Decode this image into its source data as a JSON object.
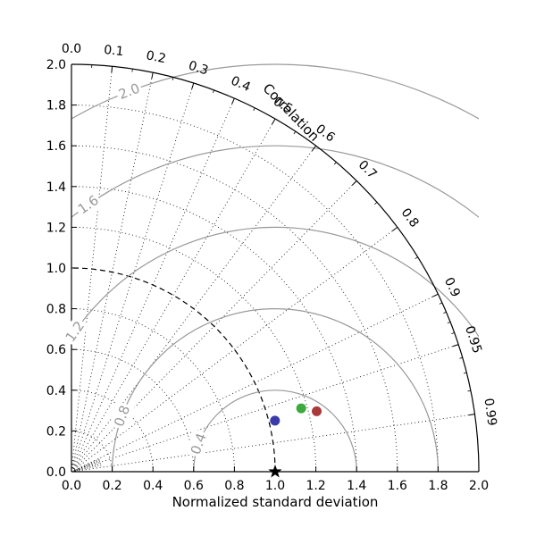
{
  "chart_data": {
    "type": "scatter",
    "subtype": "taylor-diagram",
    "title": "",
    "xlabel": "Normalized standard deviation",
    "ylabel": "",
    "angular_label": "Correlation",
    "xlim": [
      0.0,
      2.0
    ],
    "ylim": [
      0.0,
      2.0
    ],
    "x_ticks": [
      "0.0",
      "0.2",
      "0.4",
      "0.6",
      "0.8",
      "1.0",
      "1.2",
      "1.4",
      "1.6",
      "1.8",
      "2.0"
    ],
    "y_ticks": [
      "0.0",
      "0.2",
      "0.4",
      "0.6",
      "0.8",
      "1.0",
      "1.2",
      "1.4",
      "1.6",
      "1.8",
      "2.0"
    ],
    "correlation_ticks": [
      {
        "value": 0.0,
        "label": "0.0"
      },
      {
        "value": 0.1,
        "label": "0.1"
      },
      {
        "value": 0.2,
        "label": "0.2"
      },
      {
        "value": 0.3,
        "label": "0.3"
      },
      {
        "value": 0.4,
        "label": "0.4"
      },
      {
        "value": 0.5,
        "label": "0.5"
      },
      {
        "value": 0.6,
        "label": "0.6"
      },
      {
        "value": 0.7,
        "label": "0.7"
      },
      {
        "value": 0.8,
        "label": "0.8"
      },
      {
        "value": 0.9,
        "label": "0.9"
      },
      {
        "value": 0.95,
        "label": "0.95"
      },
      {
        "value": 0.99,
        "label": "0.99"
      }
    ],
    "reference": {
      "std": 1.0,
      "corr": 1.0,
      "marker": "star",
      "color": "#000000"
    },
    "rms_contours": [
      {
        "value": 0.4,
        "label": "0.4"
      },
      {
        "value": 0.8,
        "label": "0.8"
      },
      {
        "value": 1.2,
        "label": "1.2"
      },
      {
        "value": 1.6,
        "label": "1.6"
      },
      {
        "value": 2.0,
        "label": "2.0"
      }
    ],
    "points": [
      {
        "std": 1.03,
        "corr": 0.97,
        "color": "#3a3aaa"
      },
      {
        "std": 1.17,
        "corr": 0.964,
        "color": "#3caa3c"
      },
      {
        "std": 1.24,
        "corr": 0.971,
        "color": "#aa3a3a"
      }
    ],
    "grid": true,
    "colors": {
      "rms": "#999999",
      "grid": "#000000"
    }
  }
}
